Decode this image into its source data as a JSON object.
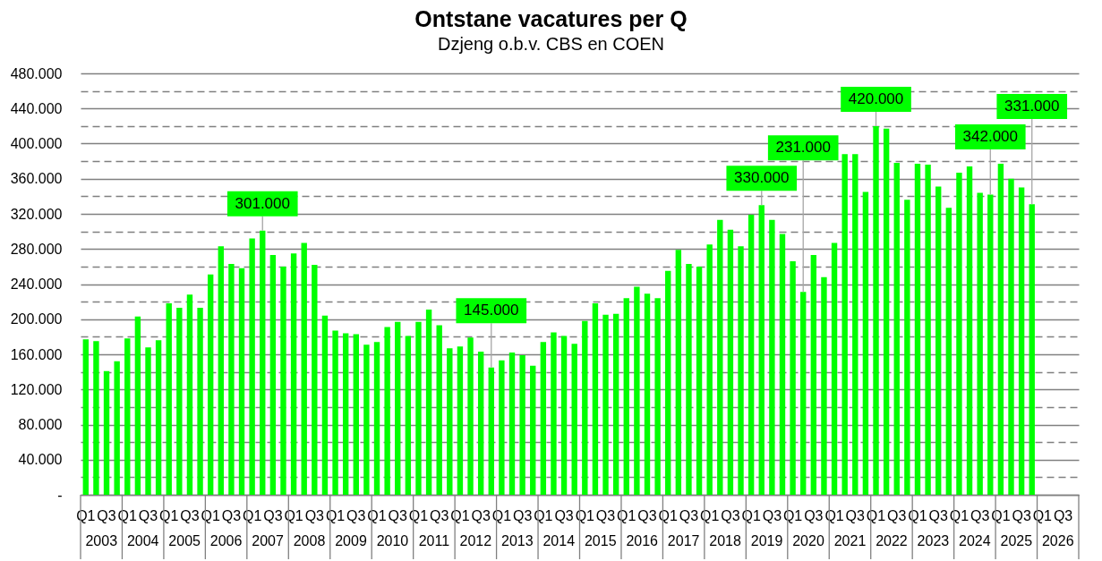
{
  "chart_data": {
    "type": "bar",
    "title": "Ontstane vacatures per Q",
    "subtitle": "Dzjeng o.b.v. CBS en COEN",
    "categories": [
      "Q1",
      null,
      "Q3",
      null,
      "Q1",
      null,
      "Q3",
      null,
      "Q1",
      null,
      "Q3",
      null,
      "Q1",
      null,
      "Q3",
      null,
      "Q1",
      null,
      "Q3",
      null,
      "Q1",
      null,
      "Q3",
      null,
      "Q1",
      null,
      "Q3",
      null,
      "Q1",
      null,
      "Q3",
      null,
      "Q1",
      null,
      "Q3",
      null,
      "Q1",
      null,
      "Q3",
      null,
      "Q1",
      null,
      "Q3",
      null,
      "Q1",
      null,
      "Q3",
      null,
      "Q1",
      null,
      "Q3",
      null,
      "Q1",
      null,
      "Q3",
      null,
      "Q1",
      null,
      "Q3",
      null,
      "Q1",
      null,
      "Q3",
      null,
      "Q1",
      null,
      "Q3",
      null,
      "Q1",
      null,
      "Q3",
      null,
      "Q1",
      null,
      "Q3",
      null,
      "Q1",
      null,
      "Q3",
      null,
      "Q1",
      null,
      "Q3",
      null,
      "Q1",
      null,
      "Q3",
      null,
      "Q1",
      null,
      "Q3",
      null,
      "Q1",
      null,
      "Q3",
      null
    ],
    "series": [
      {
        "color": "#00ff00",
        "values": [
          177000,
          175000,
          141000,
          152000,
          178000,
          203000,
          168000,
          176000,
          218000,
          213000,
          228000,
          213000,
          251000,
          283000,
          263000,
          258000,
          292000,
          301000,
          273000,
          260000,
          275000,
          287000,
          262000,
          204000,
          187000,
          184000,
          183000,
          171000,
          174000,
          191000,
          197000,
          181000,
          197000,
          211000,
          193000,
          167000,
          169000,
          179000,
          163000,
          145000,
          153000,
          162000,
          159000,
          147000,
          174000,
          185000,
          181000,
          172000,
          198000,
          218000,
          205000,
          206000,
          224000,
          237000,
          229000,
          224000,
          255000,
          279000,
          263000,
          260000,
          285000,
          313000,
          302000,
          283000,
          319000,
          330000,
          313000,
          297000,
          266000,
          231000,
          273000,
          248000,
          287000,
          388000,
          388000,
          345000,
          420000,
          417000,
          378000,
          336000,
          377000,
          376000,
          351000,
          327000,
          367000,
          374000,
          344000,
          342000,
          377000,
          360000,
          350000,
          331000,
          null,
          null,
          null,
          null
        ],
        "value_labels": [
          null,
          null,
          null,
          null,
          null,
          null,
          null,
          null,
          null,
          null,
          null,
          null,
          null,
          null,
          null,
          null,
          null,
          "301.000",
          null,
          null,
          null,
          null,
          null,
          null,
          null,
          null,
          null,
          null,
          null,
          null,
          null,
          null,
          null,
          null,
          null,
          null,
          null,
          null,
          null,
          "145.000",
          null,
          null,
          null,
          null,
          null,
          null,
          null,
          null,
          null,
          null,
          null,
          null,
          null,
          null,
          null,
          null,
          null,
          null,
          null,
          null,
          null,
          null,
          null,
          null,
          null,
          "330.000",
          null,
          null,
          null,
          "231.000",
          null,
          null,
          null,
          null,
          null,
          null,
          "420.000",
          null,
          null,
          null,
          null,
          null,
          null,
          null,
          null,
          null,
          null,
          "342.000",
          null,
          null,
          null,
          "331.000",
          null,
          null,
          null,
          null
        ]
      }
    ],
    "ylim": [
      0,
      480000
    ],
    "yticks": [
      {
        "value": 0,
        "label": "-"
      },
      {
        "value": 20000,
        "label": null
      },
      {
        "value": 40000,
        "label": "40.000"
      },
      {
        "value": 60000,
        "label": null
      },
      {
        "value": 80000,
        "label": "80.000"
      },
      {
        "value": 100000,
        "label": null
      },
      {
        "value": 120000,
        "label": "120.000"
      },
      {
        "value": 140000,
        "label": null
      },
      {
        "value": 160000,
        "label": "160.000"
      },
      {
        "value": 180000,
        "label": null
      },
      {
        "value": 200000,
        "label": "200.000"
      },
      {
        "value": 220000,
        "label": null
      },
      {
        "value": 240000,
        "label": "240.000"
      },
      {
        "value": 260000,
        "label": null
      },
      {
        "value": 280000,
        "label": "280.000"
      },
      {
        "value": 300000,
        "label": null
      },
      {
        "value": 320000,
        "label": "320.000"
      },
      {
        "value": 340000,
        "label": null
      },
      {
        "value": 360000,
        "label": "360.000"
      },
      {
        "value": 380000,
        "label": null
      },
      {
        "value": 400000,
        "label": "400.000"
      },
      {
        "value": 420000,
        "label": null
      },
      {
        "value": 440000,
        "label": "440.000"
      },
      {
        "value": 460000,
        "label": null
      },
      {
        "value": 480000,
        "label": "480.000"
      }
    ],
    "grid": "y",
    "annotations": [
      "2003",
      "2004",
      "2005",
      "2006",
      "2007",
      "2008",
      "2009",
      "2010",
      "2011",
      "2012",
      "2013",
      "2014",
      "2015",
      "2016",
      "2017",
      "2018",
      "2019",
      "2020",
      "2021",
      "2022",
      "2023",
      "2024",
      "2025",
      "2026"
    ]
  }
}
